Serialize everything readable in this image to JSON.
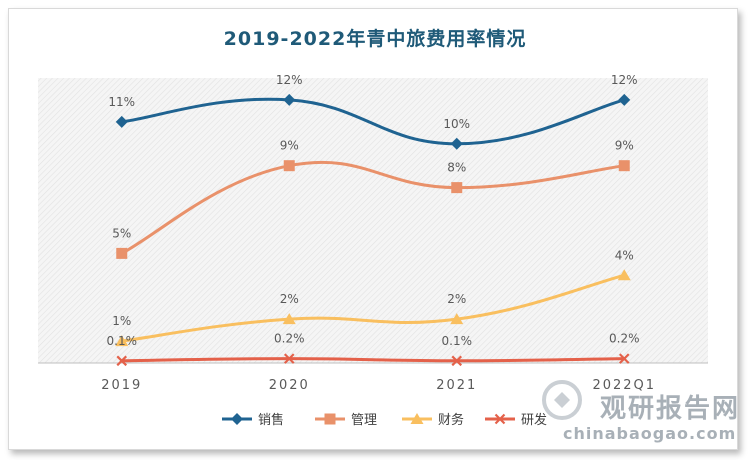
{
  "chart_data": {
    "type": "line",
    "title": "2019-2022年青中旅费用率情况",
    "categories": [
      "2019",
      "2020",
      "2021",
      "2022Q1"
    ],
    "ylim": [
      0,
      13
    ],
    "grid": false,
    "legend_position": "bottom",
    "series": [
      {
        "name": "销售",
        "values": [
          11,
          12,
          10,
          12
        ],
        "labels": [
          "11%",
          "12%",
          "10%",
          "12%"
        ],
        "color": "#1f6391",
        "marker": "diamond"
      },
      {
        "name": "管理",
        "values": [
          5,
          9,
          8,
          9
        ],
        "labels": [
          "5%",
          "9%",
          "8%",
          "9%"
        ],
        "color": "#e9916a",
        "marker": "square"
      },
      {
        "name": "财务",
        "values": [
          1,
          2,
          2,
          4
        ],
        "labels": [
          "1%",
          "2%",
          "2%",
          "4%"
        ],
        "color": "#f9bf5f",
        "marker": "triangle"
      },
      {
        "name": "研发",
        "values": [
          0.1,
          0.2,
          0.1,
          0.2
        ],
        "labels": [
          "0.1%",
          "0.2%",
          "0.1%",
          "0.2%"
        ],
        "color": "#e4614a",
        "marker": "x"
      }
    ]
  },
  "watermark": {
    "brand": "观研报告网",
    "url": "chinabaogao.com"
  }
}
